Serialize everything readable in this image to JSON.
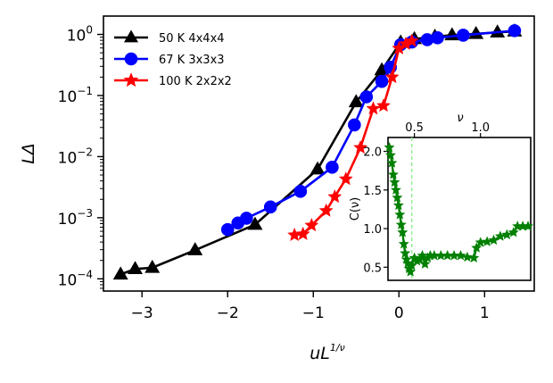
{
  "chart_data": [
    {
      "type": "line",
      "title": "",
      "xlabel": "uL^(1/ν)",
      "ylabel": "LΔ",
      "xlim": [
        -3.45,
        1.58
      ],
      "ylim_log10": [
        -4.2,
        0.3
      ],
      "yscale": "log",
      "grid": false,
      "legend_position": "top-left",
      "x_ticks": [
        {
          "value": -3,
          "label": "−3"
        },
        {
          "value": -2,
          "label": "−2"
        },
        {
          "value": -1,
          "label": "−1"
        },
        {
          "value": 0,
          "label": "0"
        },
        {
          "value": 1,
          "label": "1"
        }
      ],
      "y_ticks": [
        {
          "exp": -4,
          "base": "10",
          "sup": "−4"
        },
        {
          "exp": -3,
          "base": "10",
          "sup": "−3"
        },
        {
          "exp": -2,
          "base": "10",
          "sup": "−2"
        },
        {
          "exp": -1,
          "base": "10",
          "sup": "−1"
        },
        {
          "exp": 0,
          "base": "10",
          "sup": "0"
        }
      ],
      "series": [
        {
          "name": "50 K 4x4x4",
          "color": "#000000",
          "marker": "triangle",
          "points": [
            [
              -3.25,
              0.000118
            ],
            [
              -3.08,
              0.000145
            ],
            [
              -2.88,
              0.000152
            ],
            [
              -2.38,
              0.000295
            ],
            [
              -1.68,
              0.00077
            ],
            [
              -0.95,
              0.0062
            ],
            [
              -0.5,
              0.078
            ],
            [
              -0.2,
              0.26
            ],
            [
              0.02,
              0.74
            ],
            [
              0.18,
              0.84
            ],
            [
              0.42,
              0.92
            ],
            [
              0.62,
              0.97
            ],
            [
              0.9,
              1.02
            ],
            [
              1.15,
              1.08
            ],
            [
              1.35,
              1.12
            ]
          ]
        },
        {
          "name": "67 K 3x3x3",
          "color": "#0000ff",
          "marker": "circle",
          "points": [
            [
              -2.0,
              0.00064
            ],
            [
              -1.88,
              0.00082
            ],
            [
              -1.78,
              0.00098
            ],
            [
              -1.5,
              0.0015
            ],
            [
              -1.15,
              0.0027
            ],
            [
              -0.78,
              0.0067
            ],
            [
              -0.52,
              0.033
            ],
            [
              -0.38,
              0.095
            ],
            [
              -0.2,
              0.17
            ],
            [
              -0.1,
              0.29
            ],
            [
              0.02,
              0.68
            ],
            [
              0.15,
              0.75
            ],
            [
              0.33,
              0.82
            ],
            [
              0.45,
              0.88
            ],
            [
              0.75,
              0.97
            ],
            [
              1.35,
              1.15
            ]
          ]
        },
        {
          "name": "100 K 2x2x2",
          "color": "#ff0000",
          "marker": "star",
          "points": [
            [
              -1.22,
              0.00052
            ],
            [
              -1.12,
              0.00054
            ],
            [
              -1.02,
              0.00075
            ],
            [
              -0.85,
              0.0013
            ],
            [
              -0.75,
              0.0022
            ],
            [
              -0.62,
              0.0043
            ],
            [
              -0.45,
              0.014
            ],
            [
              -0.3,
              0.061
            ],
            [
              -0.18,
              0.068
            ],
            [
              -0.08,
              0.2
            ],
            [
              0.0,
              0.59
            ],
            [
              0.08,
              0.7
            ],
            [
              0.15,
              0.78
            ]
          ]
        }
      ]
    },
    {
      "type": "line",
      "title": "",
      "xlabel": "ν",
      "ylabel": "C(ν)",
      "xlim": [
        0.3,
        1.38
      ],
      "ylim": [
        0.33,
        2.18
      ],
      "grid": false,
      "x_ticks": [
        {
          "value": 0.5,
          "label": "0.5"
        },
        {
          "value": 1.0,
          "label": "1.0"
        }
      ],
      "y_ticks": [
        {
          "value": 0.5,
          "label": "0.5"
        },
        {
          "value": 1.0,
          "label": "1.0"
        },
        {
          "value": 1.5,
          "label": "1.5"
        },
        {
          "value": 2.0,
          "label": "2.0"
        }
      ],
      "vline": {
        "x": 0.48,
        "color": "#90ee90"
      },
      "series": [
        {
          "name": "",
          "color": "#008000",
          "marker": "star",
          "points": [
            [
              0.31,
              2.05
            ],
            [
              0.32,
              1.95
            ],
            [
              0.33,
              1.85
            ],
            [
              0.34,
              1.7
            ],
            [
              0.35,
              1.6
            ],
            [
              0.36,
              1.5
            ],
            [
              0.37,
              1.4
            ],
            [
              0.38,
              1.3
            ],
            [
              0.39,
              1.18
            ],
            [
              0.4,
              1.05
            ],
            [
              0.41,
              0.95
            ],
            [
              0.42,
              0.8
            ],
            [
              0.43,
              0.68
            ],
            [
              0.44,
              0.6
            ],
            [
              0.45,
              0.55
            ],
            [
              0.46,
              0.48
            ],
            [
              0.47,
              0.44
            ],
            [
              0.48,
              0.52
            ],
            [
              0.5,
              0.62
            ],
            [
              0.52,
              0.58
            ],
            [
              0.54,
              0.6
            ],
            [
              0.56,
              0.65
            ],
            [
              0.58,
              0.54
            ],
            [
              0.6,
              0.62
            ],
            [
              0.62,
              0.65
            ],
            [
              0.65,
              0.65
            ],
            [
              0.7,
              0.65
            ],
            [
              0.75,
              0.65
            ],
            [
              0.8,
              0.65
            ],
            [
              0.85,
              0.65
            ],
            [
              0.9,
              0.63
            ],
            [
              0.95,
              0.62
            ],
            [
              0.97,
              0.75
            ],
            [
              1.0,
              0.82
            ],
            [
              1.05,
              0.83
            ],
            [
              1.1,
              0.85
            ],
            [
              1.15,
              0.9
            ],
            [
              1.2,
              0.92
            ],
            [
              1.25,
              0.95
            ],
            [
              1.28,
              1.03
            ],
            [
              1.32,
              1.03
            ],
            [
              1.36,
              1.03
            ]
          ]
        }
      ]
    }
  ]
}
